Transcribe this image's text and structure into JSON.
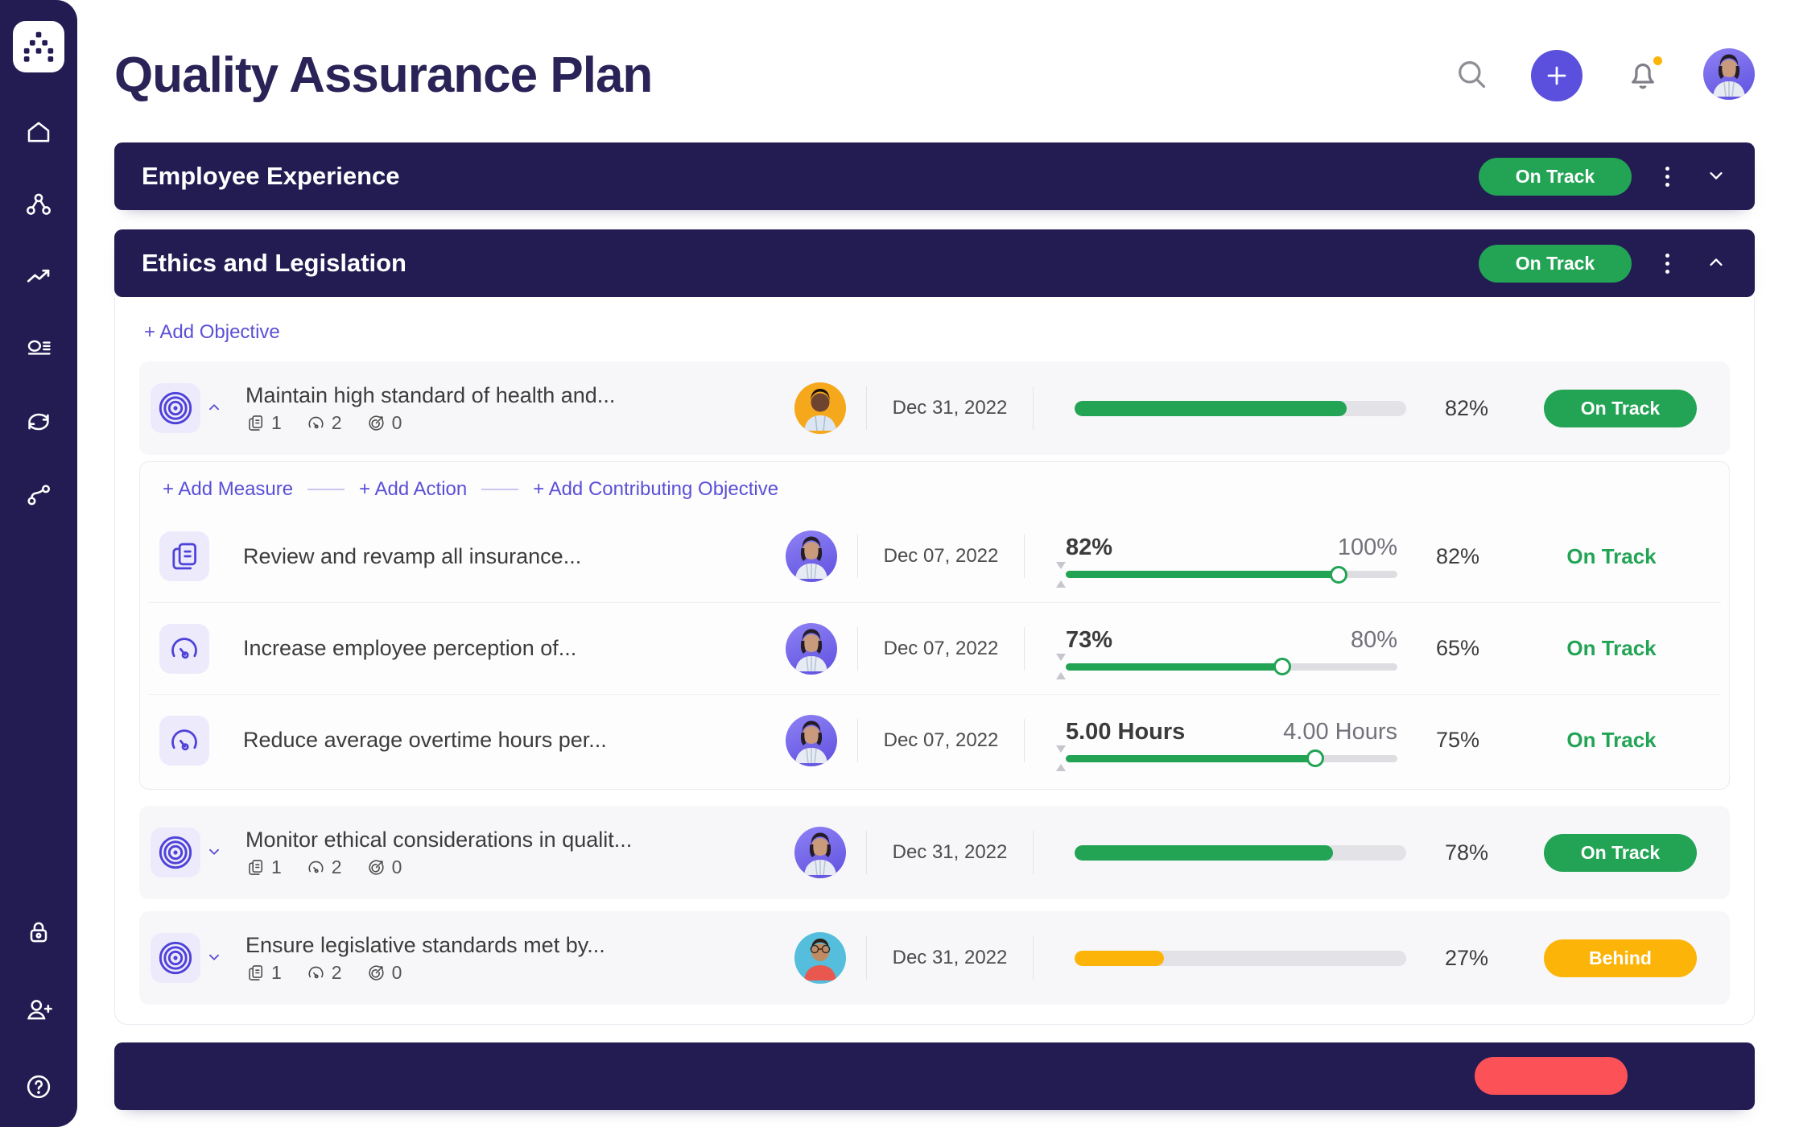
{
  "app": {
    "title": "Quality Assurance Plan"
  },
  "colors": {
    "navy": "#221C53",
    "purple": "#5B4FD6",
    "green": "#23A455",
    "yellow": "#FCB408",
    "red": "#FB5157"
  },
  "sidebar": {
    "logo_icon": "dots-hierarchy-logo",
    "items": [
      {
        "icon": "home-icon"
      },
      {
        "icon": "org-network-icon"
      },
      {
        "icon": "trend-arrow-icon"
      },
      {
        "icon": "report-icon"
      },
      {
        "icon": "sync-icon"
      },
      {
        "icon": "branch-icon"
      }
    ],
    "bottom_items": [
      {
        "icon": "lock-icon"
      },
      {
        "icon": "invite-user-icon"
      },
      {
        "icon": "help-icon"
      }
    ]
  },
  "header": {
    "search_icon": "search",
    "add_button_label": "+",
    "notifications_unread": true,
    "avatar": "user-photo"
  },
  "sections": [
    {
      "title": "Employee Experience",
      "status": "On Track",
      "expanded": false
    },
    {
      "title": "Ethics and Legislation",
      "status": "On Track",
      "expanded": true,
      "add_objective_label": "+ Add Objective",
      "objectives": [
        {
          "title": "Maintain high standard of health and...",
          "counts": {
            "doc": 1,
            "gauge": 2,
            "target": 0
          },
          "date": "Dec 31, 2022",
          "progress": 82,
          "progress_label": "82%",
          "status": "On Track",
          "expanded": true,
          "add_links": {
            "measure": "+ Add Measure",
            "action": "+ Add Action",
            "contributing": "+ Add Contributing Objective"
          },
          "measures": [
            {
              "icon": "document",
              "title": "Review and revamp all insurance...",
              "date": "Dec 07, 2022",
              "current_label": "82%",
              "target_label": "100%",
              "slider_pct": 82,
              "value": "82%",
              "status": "On Track"
            },
            {
              "icon": "gauge",
              "title": "Increase employee perception of...",
              "date": "Dec 07, 2022",
              "current_label": "73%",
              "target_label": "80%",
              "slider_pct": 65,
              "value": "65%",
              "status": "On Track"
            },
            {
              "icon": "gauge",
              "title": "Reduce average overtime hours per...",
              "date": "Dec 07, 2022",
              "current_label": "5.00 Hours",
              "target_label": "4.00 Hours",
              "slider_pct": 75,
              "value": "75%",
              "status": "On Track"
            }
          ]
        },
        {
          "title": "Monitor ethical considerations in qualit...",
          "counts": {
            "doc": 1,
            "gauge": 2,
            "target": 0
          },
          "date": "Dec 31, 2022",
          "progress": 78,
          "progress_label": "78%",
          "status": "On Track",
          "expanded": false
        },
        {
          "title": "Ensure legislative standards met by...",
          "counts": {
            "doc": 1,
            "gauge": 2,
            "target": 0
          },
          "date": "Dec 31, 2022",
          "progress": 27,
          "progress_label": "27%",
          "status": "Behind",
          "expanded": false
        }
      ]
    },
    {
      "title": "",
      "status": "",
      "partial": true
    }
  ]
}
